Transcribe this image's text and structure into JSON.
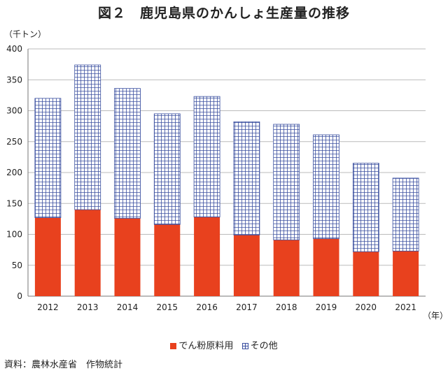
{
  "chart_data": {
    "type": "bar",
    "stacked": true,
    "title": "図２　鹿児島県のかんしょ生産量の推移",
    "ylabel": "（千トン）",
    "xlabel": "（年）",
    "ylim": [
      0,
      400
    ],
    "yticks": [
      0,
      50,
      100,
      150,
      200,
      250,
      300,
      350,
      400
    ],
    "categories": [
      "2012",
      "2013",
      "2014",
      "2015",
      "2016",
      "2017",
      "2018",
      "2019",
      "2020",
      "2021"
    ],
    "series": [
      {
        "name": "でん粉原料用",
        "values": [
          127,
          140,
          126,
          116,
          128,
          99,
          91,
          93,
          72,
          73
        ],
        "color": "#e8411e"
      },
      {
        "name": "その他",
        "values": [
          193,
          234,
          210,
          179,
          195,
          183,
          187,
          168,
          143,
          118
        ],
        "color": "#3a4fa0"
      }
    ],
    "grid": true,
    "legend_position": "bottom"
  },
  "source": "資料：農林水産省　作物統計"
}
